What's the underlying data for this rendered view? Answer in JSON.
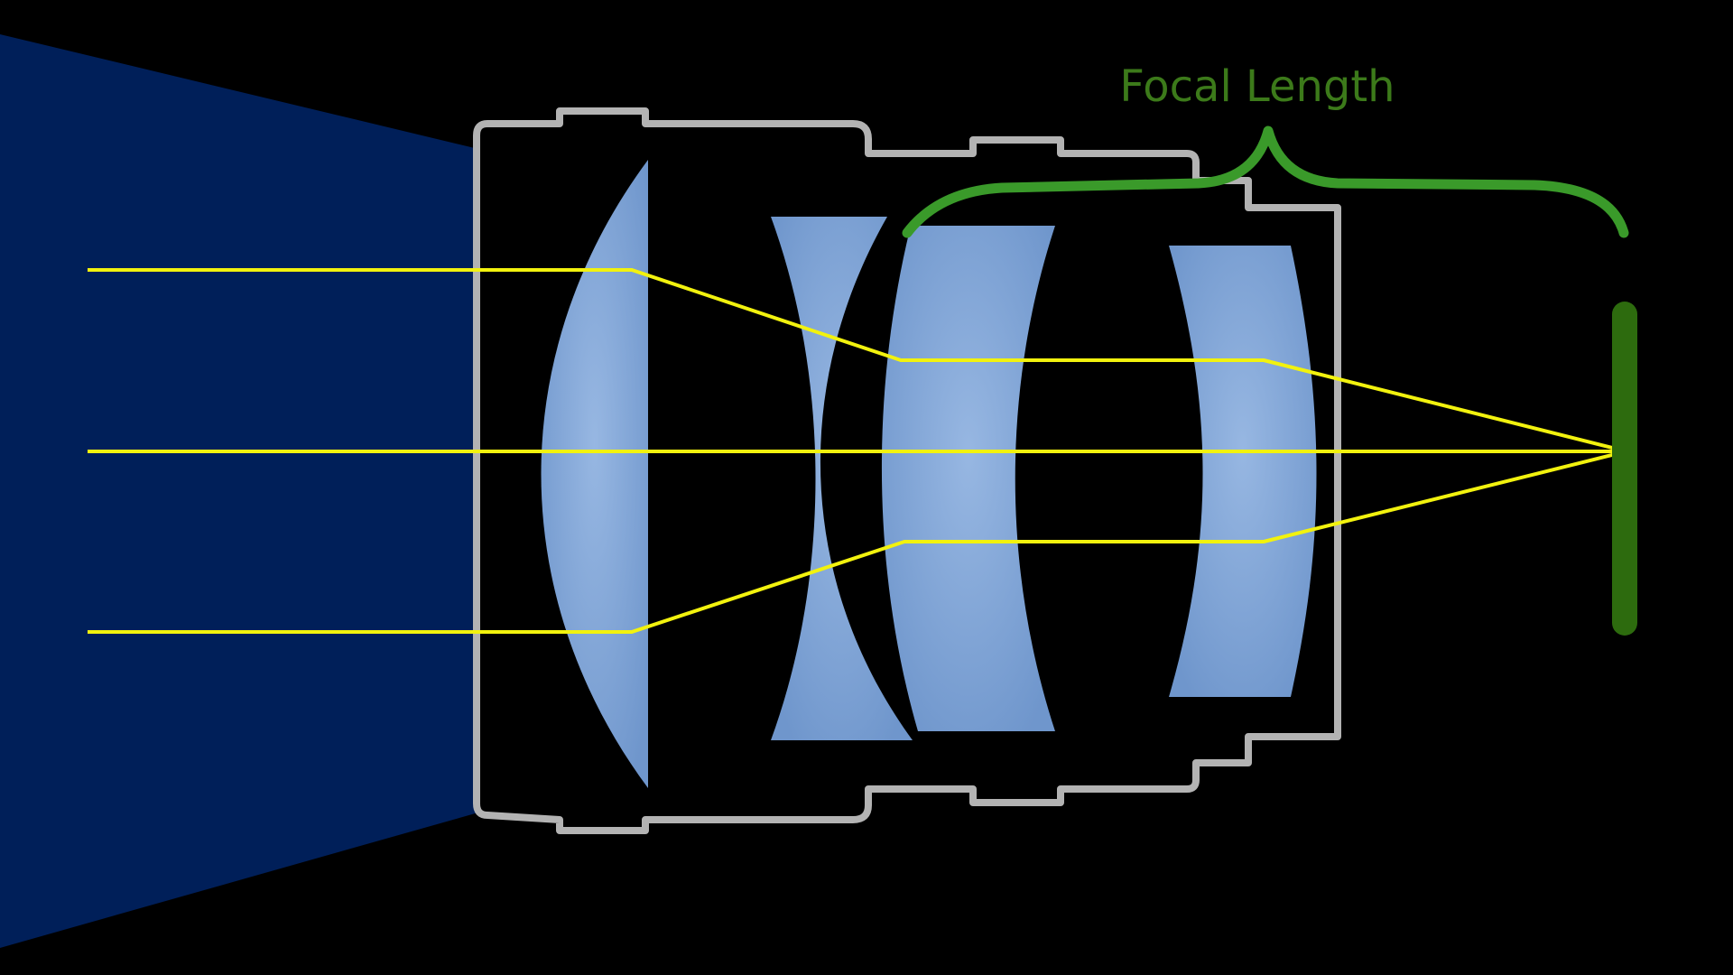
{
  "diagram": {
    "label": "Focal Length",
    "colors": {
      "background": "#000000",
      "light_cone": "#001f59",
      "lens_housing": "#b3b3b3",
      "lens_glass": "#86a9d7",
      "light_ray": "#f2f20e",
      "focal_bracket": "#3a9a2a",
      "focal_label": "#3c7a1a",
      "sensor": "#2d6b0e"
    }
  }
}
